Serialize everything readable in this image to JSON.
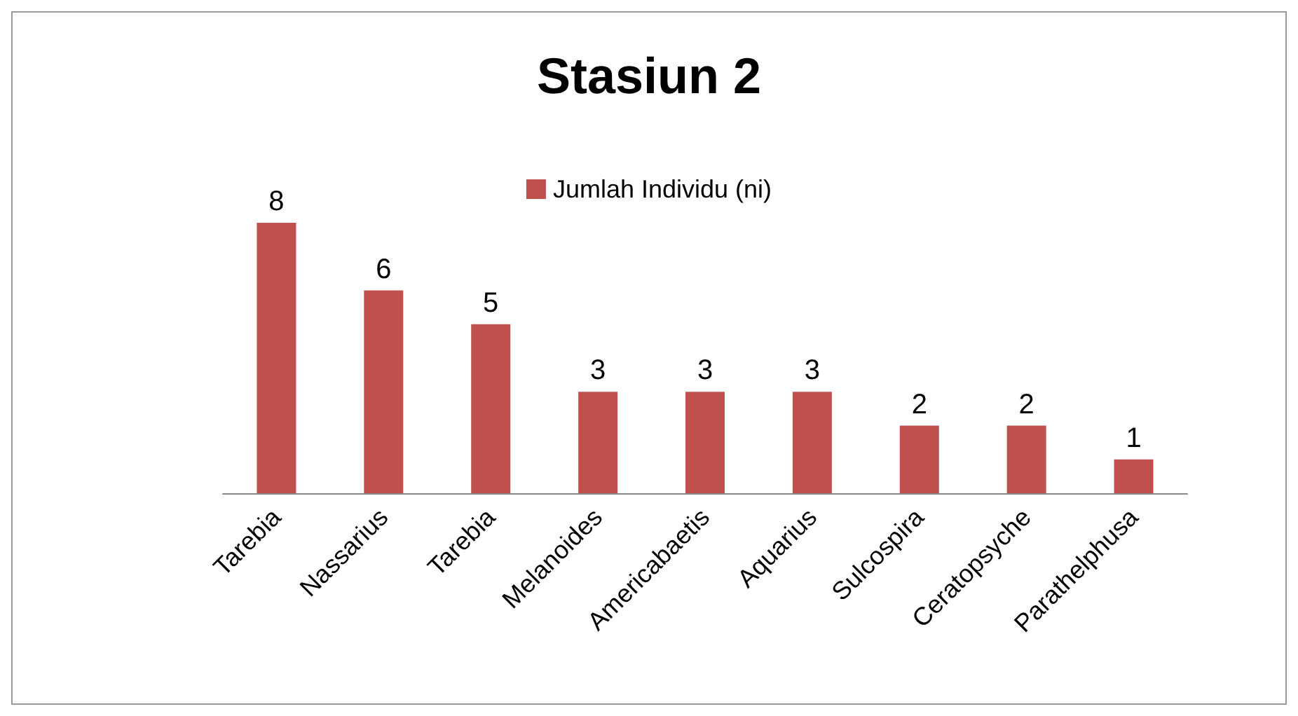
{
  "chart_data": {
    "type": "bar",
    "title": "Stasiun 2",
    "categories": [
      "Tarebia",
      "Nassarius",
      "Tarebia",
      "Melanoides",
      "Americabaetis",
      "Aquarius",
      "Sulcospira",
      "Ceratopsyche",
      "Parathelphusa"
    ],
    "series": [
      {
        "name": "Jumlah Individu (ni)",
        "color": "#c0504d",
        "values": [
          8,
          6,
          5,
          3,
          3,
          3,
          2,
          2,
          1
        ]
      }
    ],
    "data_labels": true,
    "legend": "top"
  }
}
